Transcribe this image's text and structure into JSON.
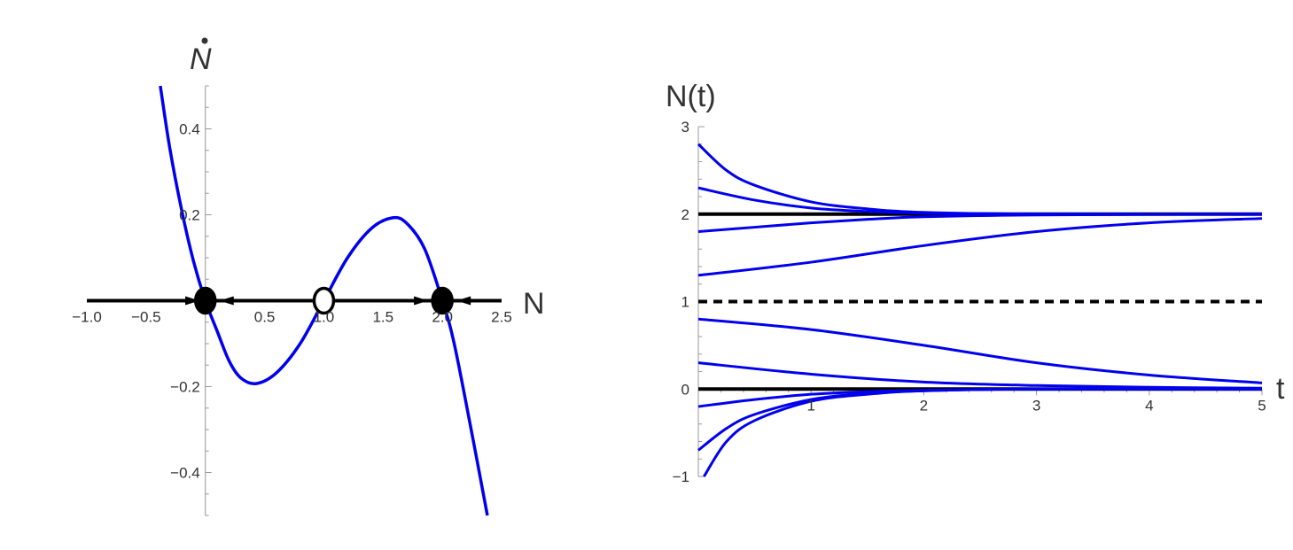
{
  "chart_data": [
    {
      "type": "line",
      "panel": "phase-line",
      "xlabel": "N",
      "ylabel": "N",
      "ylabel_decoration": "dot",
      "xlim": [
        -1.0,
        2.5
      ],
      "ylim": [
        -0.5,
        0.5
      ],
      "x_ticks": [
        -1.0,
        -0.5,
        0.5,
        1.0,
        1.5,
        2.0,
        2.5
      ],
      "x_tick_labels": [
        "−1.0",
        "−0.5",
        "0.5",
        "1.0",
        "1.5",
        "2.0",
        "2.5"
      ],
      "y_ticks": [
        -0.4,
        -0.2,
        0.2,
        0.4
      ],
      "y_tick_labels": [
        "−0.4",
        "−0.2",
        "0.2",
        "0.4"
      ],
      "series": [
        {
          "color": "#0000ee",
          "points": [
            [
              -0.38,
              0.5
            ],
            [
              -0.3,
              0.355
            ],
            [
              -0.2,
              0.211
            ],
            [
              -0.1,
              0.092
            ],
            [
              0.0,
              0.0
            ],
            [
              0.1,
              -0.071
            ],
            [
              0.2,
              -0.14
            ],
            [
              0.3,
              -0.18
            ],
            [
              0.43,
              -0.193
            ],
            [
              0.6,
              -0.168
            ],
            [
              0.8,
              -0.1
            ],
            [
              1.0,
              0.0
            ],
            [
              1.2,
              0.1
            ],
            [
              1.4,
              0.168
            ],
            [
              1.58,
              0.193
            ],
            [
              1.7,
              0.18
            ],
            [
              1.85,
              0.121
            ],
            [
              2.0,
              0.0
            ],
            [
              2.1,
              -0.1
            ],
            [
              2.25,
              -0.31
            ],
            [
              2.38,
              -0.5
            ]
          ]
        }
      ],
      "fixed_points": [
        {
          "N": 0,
          "stability": "stable"
        },
        {
          "N": 1,
          "stability": "unstable"
        },
        {
          "N": 2,
          "stability": "stable"
        }
      ],
      "flow_arrows": [
        {
          "from": -1.0,
          "to": -0.05
        },
        {
          "from": 0.9,
          "to": 0.12
        },
        {
          "from": 1.1,
          "to": 1.88
        },
        {
          "from": 2.5,
          "to": 2.12
        }
      ]
    },
    {
      "type": "line",
      "panel": "solutions",
      "xlabel": "t",
      "ylabel": "N(t)",
      "xlim": [
        0,
        5
      ],
      "ylim": [
        -1,
        3
      ],
      "x_ticks": [
        1,
        2,
        3,
        4,
        5
      ],
      "x_tick_labels": [
        "1",
        "2",
        "3",
        "4",
        "5"
      ],
      "y_ticks": [
        -1,
        0,
        1,
        2,
        3
      ],
      "y_tick_labels": [
        "−1",
        "0",
        "1",
        "2",
        "3"
      ],
      "reference_lines": [
        {
          "y": 2,
          "style": "solid",
          "color": "#000000"
        },
        {
          "y": 0,
          "style": "solid",
          "color": "#000000"
        },
        {
          "y": 1,
          "style": "dashed",
          "color": "#000000"
        }
      ],
      "series": [
        {
          "color": "#0000ee",
          "initial": 2.8,
          "points": [
            [
              0,
              2.8
            ],
            [
              0.25,
              2.5
            ],
            [
              0.5,
              2.33
            ],
            [
              1,
              2.14
            ],
            [
              1.5,
              2.06
            ],
            [
              2,
              2.02
            ],
            [
              3,
              2.0
            ],
            [
              5,
              2.0
            ]
          ]
        },
        {
          "color": "#0000ee",
          "initial": 2.3,
          "points": [
            [
              0,
              2.3
            ],
            [
              0.5,
              2.16
            ],
            [
              1,
              2.07
            ],
            [
              1.5,
              2.03
            ],
            [
              2,
              2.01
            ],
            [
              3,
              2.0
            ],
            [
              5,
              2.0
            ]
          ]
        },
        {
          "color": "#0000ee",
          "initial": 1.8,
          "points": [
            [
              0,
              1.8
            ],
            [
              0.5,
              1.85
            ],
            [
              1,
              1.9
            ],
            [
              1.5,
              1.94
            ],
            [
              2,
              1.97
            ],
            [
              3,
              1.99
            ],
            [
              5,
              2.0
            ]
          ]
        },
        {
          "color": "#0000ee",
          "initial": 1.3,
          "points": [
            [
              0,
              1.3
            ],
            [
              1,
              1.45
            ],
            [
              2,
              1.64
            ],
            [
              3,
              1.8
            ],
            [
              4,
              1.9
            ],
            [
              5,
              1.95
            ]
          ]
        },
        {
          "color": "#0000ee",
          "initial": 0.8,
          "points": [
            [
              0,
              0.8
            ],
            [
              1,
              0.68
            ],
            [
              2,
              0.5
            ],
            [
              3,
              0.3
            ],
            [
              4,
              0.16
            ],
            [
              5,
              0.07
            ]
          ]
        },
        {
          "color": "#0000ee",
          "initial": 0.3,
          "points": [
            [
              0,
              0.3
            ],
            [
              1,
              0.17
            ],
            [
              2,
              0.08
            ],
            [
              3,
              0.04
            ],
            [
              4,
              0.02
            ],
            [
              5,
              0.01
            ]
          ]
        },
        {
          "color": "#0000ee",
          "initial": -0.2,
          "points": [
            [
              0,
              -0.2
            ],
            [
              0.5,
              -0.12
            ],
            [
              1,
              -0.06
            ],
            [
              1.5,
              -0.03
            ],
            [
              2,
              -0.015
            ],
            [
              3,
              0.0
            ],
            [
              5,
              0.0
            ]
          ]
        },
        {
          "color": "#0000ee",
          "initial": -0.7,
          "points": [
            [
              0,
              -0.7
            ],
            [
              0.25,
              -0.45
            ],
            [
              0.5,
              -0.29
            ],
            [
              1,
              -0.12
            ],
            [
              1.5,
              -0.05
            ],
            [
              2,
              -0.02
            ],
            [
              3,
              0.0
            ],
            [
              5,
              0.0
            ]
          ]
        },
        {
          "color": "#0000ee",
          "initial": -1.0,
          "points": [
            [
              0.05,
              -1.0
            ],
            [
              0.25,
              -0.6
            ],
            [
              0.5,
              -0.36
            ],
            [
              1,
              -0.14
            ],
            [
              1.5,
              -0.06
            ],
            [
              2,
              -0.02
            ],
            [
              3,
              0.0
            ],
            [
              5,
              0.0
            ]
          ]
        }
      ]
    }
  ]
}
